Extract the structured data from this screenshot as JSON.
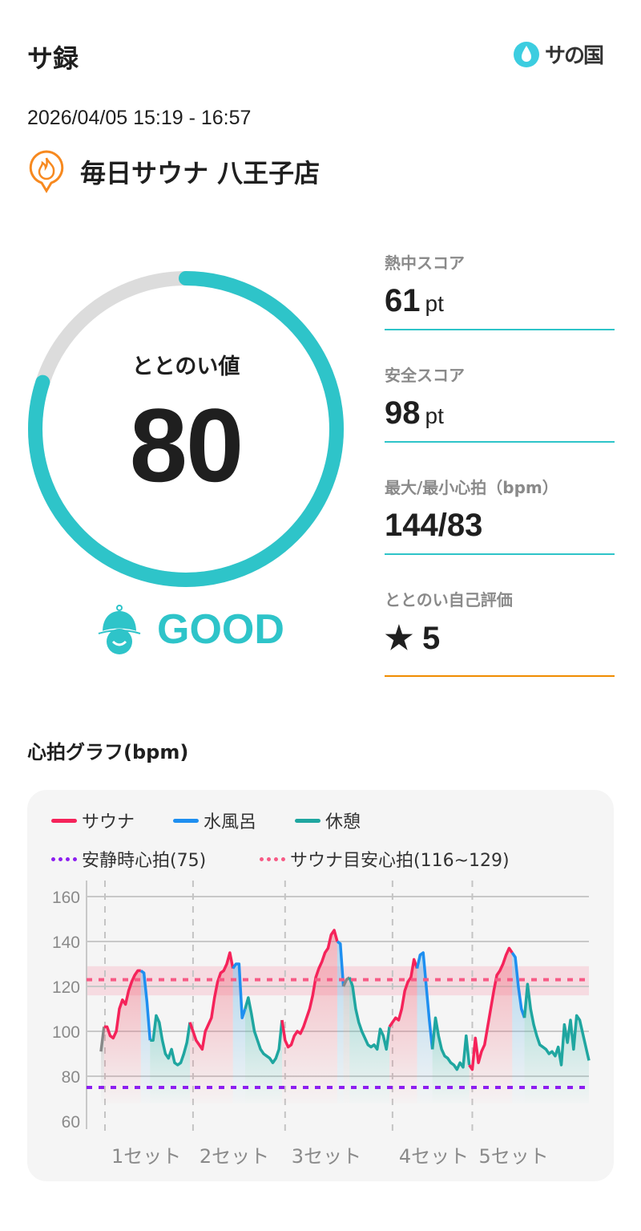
{
  "header": {
    "title": "サ録",
    "logo_text": "サの国",
    "logo_icon": "water-drop-icon"
  },
  "session": {
    "datetime": "2026/04/05 15:19 - 16:57",
    "facility": "毎日サウナ 八王子店",
    "facility_icon": "flame-pin-icon"
  },
  "totonoi": {
    "label": "ととのい値",
    "value": "80",
    "percent": 80,
    "rating": "GOOD",
    "rating_icon": "sauna-hat-face-icon",
    "color": "#2ec4c9"
  },
  "stats": [
    {
      "label": "熱中スコア",
      "value": "61",
      "unit": "pt",
      "color": "#2ec4c9"
    },
    {
      "label": "安全スコア",
      "value": "98",
      "unit": "pt",
      "color": "#2ec4c9"
    },
    {
      "label": "最大/最小心拍（bpm）",
      "value": "144/83",
      "unit": "",
      "color": "#2ec4c9"
    },
    {
      "label": "ととのい自己評価",
      "value": "★ 5",
      "unit": "",
      "color": "#f08c00"
    }
  ],
  "chart_section": {
    "title": "心拍グラフ(bpm)"
  },
  "chart_data": {
    "type": "line",
    "legend": [
      {
        "name": "サウナ",
        "color": "#f5235a",
        "style": "solid"
      },
      {
        "name": "水風呂",
        "color": "#1e8ff0",
        "style": "solid"
      },
      {
        "name": "休憩",
        "color": "#1fa6a0",
        "style": "solid"
      },
      {
        "name": "安静時心拍(75)",
        "color": "#8c1ef0",
        "style": "dotted"
      },
      {
        "name": "サウナ目安心拍(116~129)",
        "color": "#f75a85",
        "style": "dotted"
      }
    ],
    "ylim": [
      60,
      160
    ],
    "yticks": [
      60,
      80,
      100,
      120,
      140,
      160
    ],
    "resting_hr": 75,
    "target_band": [
      116,
      129
    ],
    "target_line": 123,
    "grid": true,
    "sets": [
      {
        "label": "1セット",
        "segments": [
          {
            "type": "other",
            "values": [
              91,
              102
            ]
          },
          {
            "type": "sauna",
            "values": [
              102,
              98,
              97,
              100,
              110,
              114,
              112,
              118,
              122,
              125,
              127,
              127
            ]
          },
          {
            "type": "water",
            "values": [
              126,
              113,
              96
            ]
          },
          {
            "type": "rest",
            "values": [
              96,
              107,
              104,
              96,
              90,
              88,
              92,
              86,
              85,
              86,
              90,
              95,
              104
            ]
          }
        ]
      },
      {
        "label": "2セット",
        "segments": [
          {
            "type": "sauna",
            "values": [
              100,
              96,
              94,
              92,
              100,
              103,
              106,
              115,
              122,
              126,
              127,
              130,
              135,
              128
            ]
          },
          {
            "type": "water",
            "values": [
              130,
              130,
              106,
              110
            ]
          },
          {
            "type": "rest",
            "values": [
              115,
              108,
              100,
              96,
              92,
              90,
              89,
              88,
              86,
              88,
              92,
              105
            ]
          }
        ]
      },
      {
        "label": "3セット",
        "segments": [
          {
            "type": "sauna",
            "values": [
              96,
              93,
              94,
              98,
              100,
              99,
              102,
              106,
              110,
              116,
              124,
              128,
              131,
              135,
              137,
              143,
              145,
              140
            ]
          },
          {
            "type": "water",
            "values": [
              139,
              120
            ]
          },
          {
            "type": "other",
            "values": [
              123,
              124
            ]
          },
          {
            "type": "rest",
            "values": [
              120,
              110,
              104,
              100,
              97,
              94,
              93,
              94,
              92,
              101,
              98,
              92,
              102
            ]
          }
        ]
      },
      {
        "label": "4セット",
        "segments": [
          {
            "type": "sauna",
            "values": [
              104,
              106,
              105,
              110,
              118,
              122,
              124,
              132,
              128
            ]
          },
          {
            "type": "water",
            "values": [
              134,
              135,
              120,
              105,
              92
            ]
          },
          {
            "type": "rest",
            "values": [
              106,
              98,
              92,
              89,
              88,
              86,
              85,
              83,
              86,
              84,
              98,
              85
            ]
          }
        ]
      },
      {
        "label": "5セット",
        "segments": [
          {
            "type": "sauna",
            "values": [
              83,
              97,
              86,
              91,
              94,
              102,
              110,
              118,
              125,
              127,
              130,
              134,
              137,
              135
            ]
          },
          {
            "type": "water",
            "values": [
              133,
              120,
              110,
              106
            ]
          },
          {
            "type": "rest",
            "values": [
              121,
              110,
              103,
              98,
              94,
              93,
              92,
              90,
              91,
              89,
              93,
              85,
              103,
              95,
              105,
              92,
              107,
              105,
              99,
              93,
              87
            ]
          }
        ]
      }
    ]
  }
}
